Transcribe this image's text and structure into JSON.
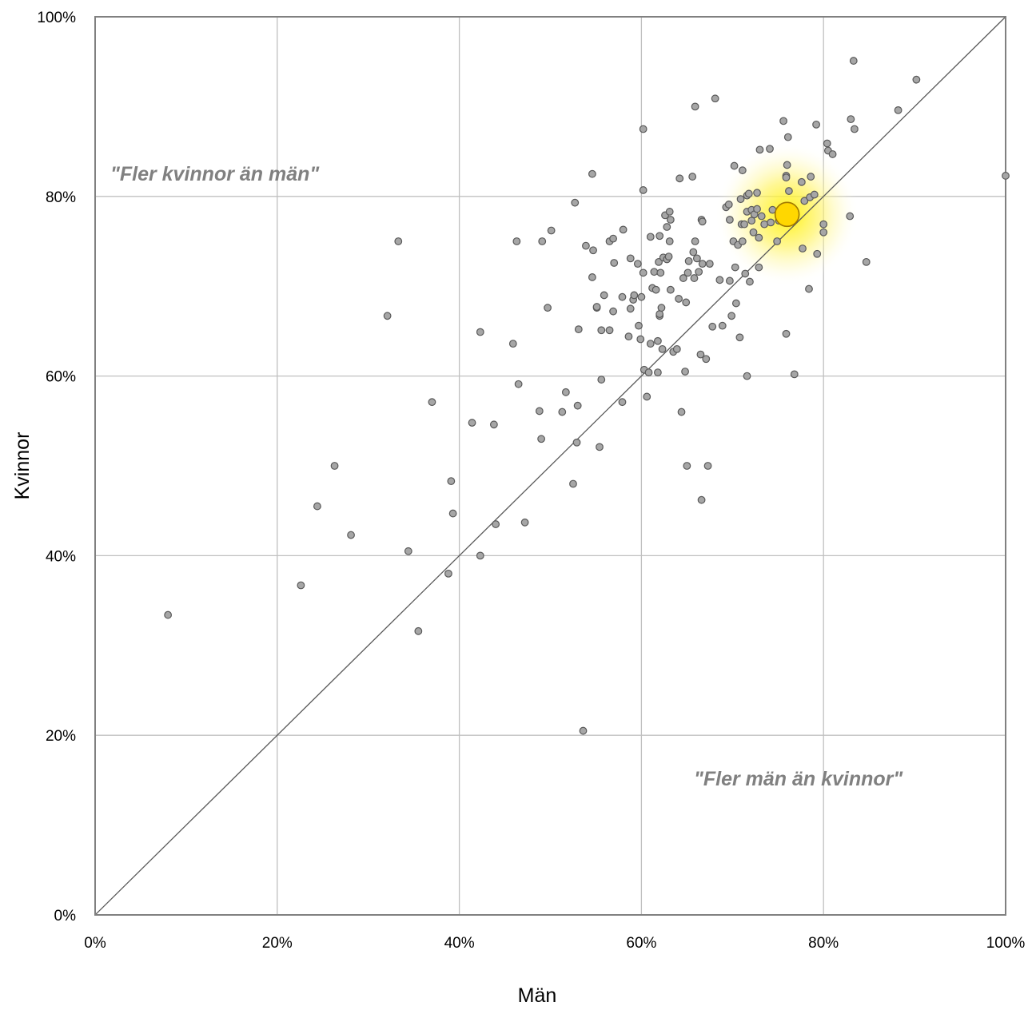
{
  "chart_data": {
    "type": "scatter",
    "title": "",
    "xlabel": "Män",
    "ylabel": "Kvinnor",
    "xlim": [
      0,
      100
    ],
    "ylim": [
      0,
      100
    ],
    "x_ticks": [
      "0%",
      "20%",
      "40%",
      "60%",
      "80%",
      "100%"
    ],
    "y_ticks": [
      "0%",
      "20%",
      "40%",
      "60%",
      "80%",
      "100%"
    ],
    "grid": true,
    "diagonal_reference_line": true,
    "annotations": {
      "upper_left": "\"Fler kvinnor än män\"",
      "lower_right": "\"Fler män än kvinnor\""
    },
    "colors": {
      "point_fill": "#a6a6a6",
      "point_stroke": "#595959",
      "highlight_fill": "#ffd700",
      "highlight_stroke": "#a07800",
      "glow": "#fff176",
      "grid": "#c0c0c0",
      "axis": "#808080",
      "diagonal": "#595959",
      "annotation": "#808080"
    },
    "highlight_point": {
      "x": 76,
      "y": 78
    },
    "series": [
      {
        "points": [
          [
            8,
            33.4
          ],
          [
            22.6,
            36.7
          ],
          [
            24.4,
            45.5
          ],
          [
            26.3,
            50
          ],
          [
            28.1,
            42.3
          ],
          [
            32.1,
            66.7
          ],
          [
            33.3,
            75
          ],
          [
            34.4,
            40.5
          ],
          [
            35.5,
            31.6
          ],
          [
            37,
            57.1
          ],
          [
            38.8,
            38
          ],
          [
            39.1,
            48.3
          ],
          [
            39.3,
            44.7
          ],
          [
            41.4,
            54.8
          ],
          [
            42.3,
            40
          ],
          [
            42.3,
            64.9
          ],
          [
            43.8,
            54.6
          ],
          [
            44,
            43.5
          ],
          [
            45.9,
            63.6
          ],
          [
            46.3,
            75
          ],
          [
            46.5,
            59.1
          ],
          [
            47.2,
            43.7
          ],
          [
            48.8,
            56.1
          ],
          [
            49,
            53
          ],
          [
            49.1,
            75
          ],
          [
            49.7,
            67.6
          ],
          [
            50.1,
            76.2
          ],
          [
            51.3,
            56
          ],
          [
            51.7,
            58.2
          ],
          [
            52.5,
            48
          ],
          [
            52.7,
            79.3
          ],
          [
            52.9,
            52.6
          ],
          [
            53,
            56.7
          ],
          [
            53.1,
            65.2
          ],
          [
            53.9,
            74.5
          ],
          [
            54.6,
            71
          ],
          [
            54.6,
            82.5
          ],
          [
            54.7,
            74
          ],
          [
            55.1,
            67.6
          ],
          [
            55.1,
            67.7
          ],
          [
            55.4,
            52.1
          ],
          [
            55.6,
            59.6
          ],
          [
            55.6,
            65.1
          ],
          [
            55.9,
            69
          ],
          [
            56.5,
            65.1
          ],
          [
            56.5,
            75
          ],
          [
            56.9,
            67.2
          ],
          [
            56.9,
            75.3
          ],
          [
            57,
            72.6
          ],
          [
            57.9,
            57.1
          ],
          [
            57.9,
            68.8
          ],
          [
            58,
            76.3
          ],
          [
            58.6,
            64.4
          ],
          [
            58.8,
            67.5
          ],
          [
            58.8,
            73.1
          ],
          [
            59.1,
            68.5
          ],
          [
            59.2,
            69
          ],
          [
            59.6,
            72.5
          ],
          [
            59.7,
            65.6
          ],
          [
            59.9,
            64.1
          ],
          [
            60,
            68.8
          ],
          [
            60.2,
            71.5
          ],
          [
            60.2,
            80.7
          ],
          [
            60.2,
            87.5
          ],
          [
            60.3,
            60.7
          ],
          [
            60.6,
            57.7
          ],
          [
            60.8,
            60.4
          ],
          [
            61,
            63.6
          ],
          [
            61,
            75.5
          ],
          [
            61.2,
            69.8
          ],
          [
            61.4,
            71.6
          ],
          [
            61.6,
            69.6
          ],
          [
            61.8,
            60.4
          ],
          [
            61.8,
            63.9
          ],
          [
            61.9,
            72.7
          ],
          [
            62,
            66.7
          ],
          [
            62,
            66.9
          ],
          [
            62,
            75.6
          ],
          [
            62.1,
            71.5
          ],
          [
            62.2,
            67.6
          ],
          [
            62.3,
            63
          ],
          [
            62.4,
            73.2
          ],
          [
            62.6,
            77.9
          ],
          [
            62.8,
            76.6
          ],
          [
            62.8,
            73
          ],
          [
            63,
            73.3
          ],
          [
            63.1,
            78.3
          ],
          [
            63.1,
            75
          ],
          [
            63.2,
            77.4
          ],
          [
            63.2,
            69.6
          ],
          [
            63.5,
            62.7
          ],
          [
            63.9,
            63
          ],
          [
            64.1,
            68.6
          ],
          [
            64.2,
            82
          ],
          [
            64.4,
            56
          ],
          [
            64.6,
            70.9
          ],
          [
            64.8,
            60.5
          ],
          [
            64.9,
            68.2
          ],
          [
            65,
            50
          ],
          [
            65.1,
            71.5
          ],
          [
            65.2,
            72.8
          ],
          [
            65.6,
            82.2
          ],
          [
            65.7,
            73.8
          ],
          [
            65.8,
            70.9
          ],
          [
            65.9,
            90
          ],
          [
            65.9,
            75
          ],
          [
            66.1,
            73.1
          ],
          [
            66.3,
            71.6
          ],
          [
            66.5,
            62.4
          ],
          [
            66.6,
            46.2
          ],
          [
            66.6,
            77.4
          ],
          [
            66.7,
            72.5
          ],
          [
            66.7,
            77.2
          ],
          [
            67.1,
            61.9
          ],
          [
            67.3,
            50
          ],
          [
            67.5,
            72.5
          ],
          [
            67.8,
            65.5
          ],
          [
            68.1,
            90.9
          ],
          [
            68.6,
            70.7
          ],
          [
            68.9,
            65.6
          ],
          [
            69.3,
            78.8
          ],
          [
            69.6,
            79.1
          ],
          [
            69.7,
            70.6
          ],
          [
            69.7,
            77.4
          ],
          [
            69.9,
            66.7
          ],
          [
            70.1,
            75
          ],
          [
            70.2,
            83.4
          ],
          [
            70.3,
            72.1
          ],
          [
            70.4,
            68.1
          ],
          [
            70.6,
            74.6
          ],
          [
            70.8,
            64.3
          ],
          [
            70.9,
            79.7
          ],
          [
            71,
            76.9
          ],
          [
            71.1,
            75
          ],
          [
            71.1,
            82.9
          ],
          [
            71.3,
            76.9
          ],
          [
            71.4,
            71.4
          ],
          [
            71.6,
            78.3
          ],
          [
            71.6,
            80.1
          ],
          [
            71.8,
            80.3
          ],
          [
            71.9,
            70.5
          ],
          [
            72.1,
            78.5
          ],
          [
            72.1,
            77.3
          ],
          [
            72.3,
            76
          ],
          [
            72.4,
            78
          ],
          [
            72.7,
            78.6
          ],
          [
            72.7,
            80.4
          ],
          [
            72.9,
            72.1
          ],
          [
            72.9,
            75.4
          ],
          [
            73,
            85.2
          ],
          [
            73.2,
            77.8
          ],
          [
            73.5,
            76.9
          ],
          [
            74.1,
            85.3
          ],
          [
            74.2,
            77.1
          ],
          [
            74.4,
            78.5
          ],
          [
            74.9,
            75
          ],
          [
            75.1,
            77.3
          ],
          [
            75.6,
            88.4
          ],
          [
            75.9,
            82.3
          ],
          [
            75.9,
            82.1
          ],
          [
            76,
            83.5
          ],
          [
            76.1,
            86.6
          ],
          [
            76.2,
            80.6
          ],
          [
            75.9,
            64.7
          ],
          [
            76.8,
            60.2
          ],
          [
            77.6,
            81.6
          ],
          [
            77.7,
            74.2
          ],
          [
            77.9,
            79.5
          ],
          [
            78.4,
            69.7
          ],
          [
            78.5,
            79.9
          ],
          [
            78.6,
            82.2
          ],
          [
            79,
            80.2
          ],
          [
            79.2,
            88
          ],
          [
            79.3,
            73.6
          ],
          [
            80,
            76.9
          ],
          [
            80,
            76
          ],
          [
            80.4,
            85.9
          ],
          [
            80.5,
            85.1
          ],
          [
            81,
            84.7
          ],
          [
            82.9,
            77.8
          ],
          [
            83,
            88.6
          ],
          [
            83.3,
            95.1
          ],
          [
            83.4,
            87.5
          ],
          [
            84.7,
            72.7
          ],
          [
            88.2,
            89.6
          ],
          [
            90.2,
            93
          ],
          [
            100,
            82.3
          ],
          [
            71.6,
            60
          ],
          [
            53.6,
            20.5
          ]
        ]
      }
    ]
  }
}
